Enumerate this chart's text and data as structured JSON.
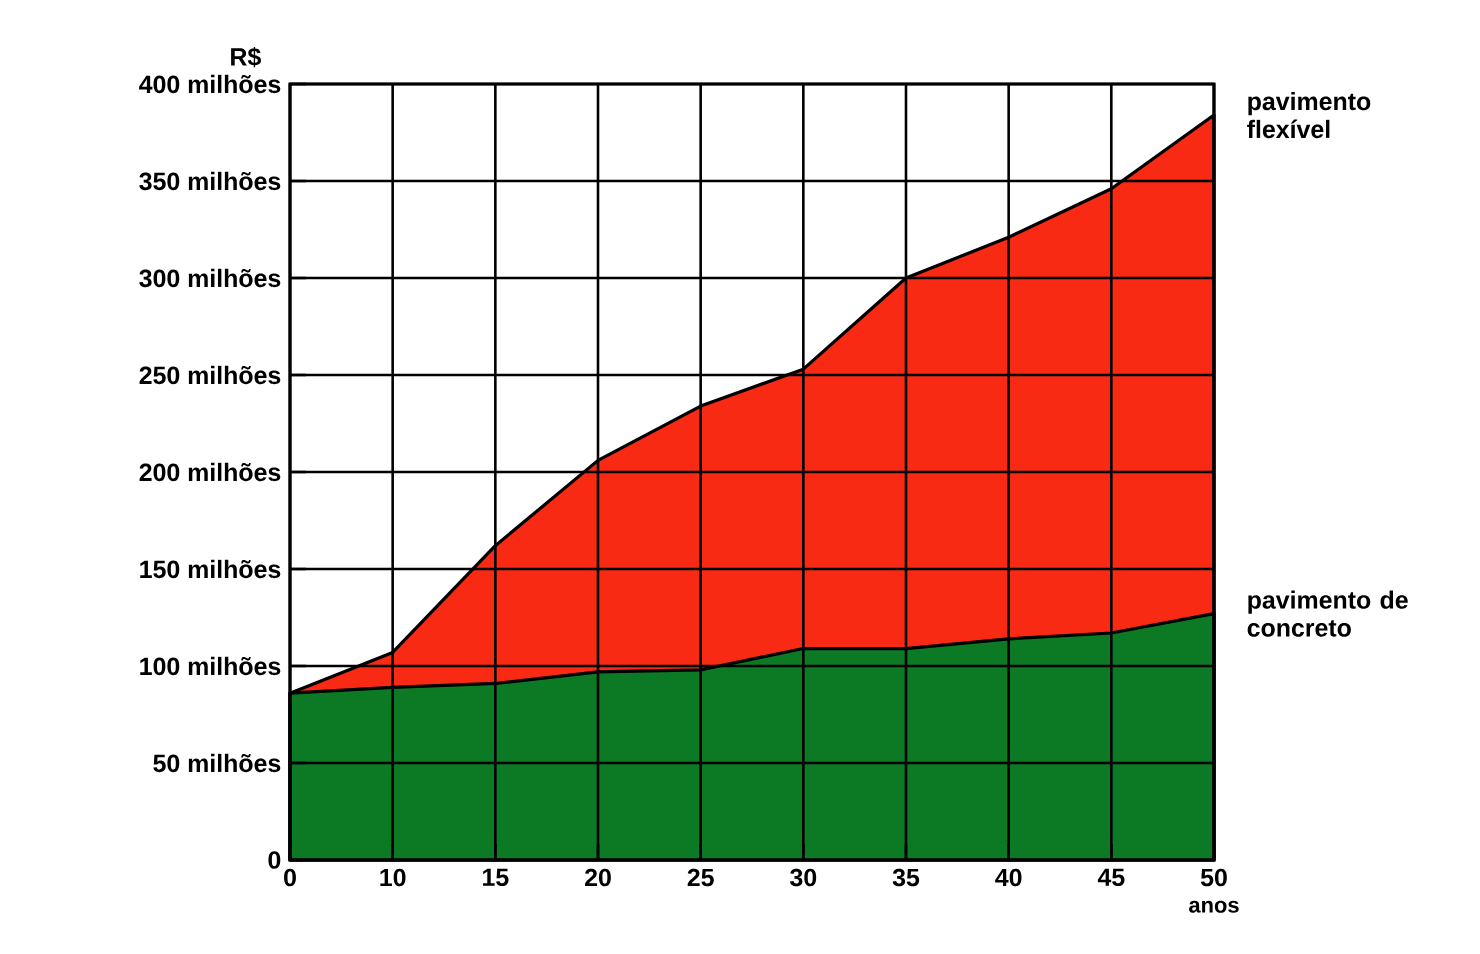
{
  "chart_data": {
    "type": "area",
    "xlabel": "anos",
    "ylabel": "R$",
    "categories": [
      "0",
      "10",
      "15",
      "20",
      "25",
      "30",
      "35",
      "40",
      "45",
      "50"
    ],
    "series": [
      {
        "name": "pavimento flexível",
        "color": "#f82a14",
        "values": [
          86,
          107,
          162,
          206,
          234,
          253,
          300,
          321,
          346,
          384
        ]
      },
      {
        "name": "pavimento de concreto",
        "color": "#0c7a24",
        "values": [
          86,
          89,
          91,
          97,
          98,
          109,
          109,
          114,
          117,
          127
        ]
      }
    ],
    "ylim": [
      0,
      400
    ],
    "yticks": [
      0,
      {
        "value": 50,
        "label": "50 milhões"
      },
      {
        "value": 100,
        "label": "100 milhões"
      },
      {
        "value": 150,
        "label": "150 milhões"
      },
      {
        "value": 200,
        "label": "200 milhões"
      },
      {
        "value": 250,
        "label": "250 milhões"
      },
      {
        "value": 300,
        "label": "300 milhões"
      },
      {
        "value": 350,
        "label": "350 milhões"
      },
      {
        "value": 400,
        "label": "400 milhões"
      }
    ],
    "grid": true
  }
}
